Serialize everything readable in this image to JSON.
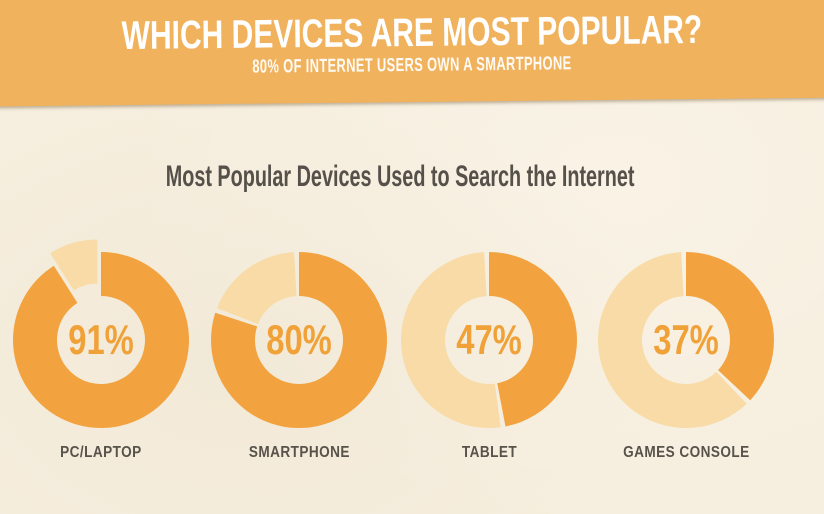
{
  "banner": {
    "title": "WHICH DEVICES ARE MOST POPULAR?",
    "subtitle": "80% OF INTERNET USERS OWN A SMARTPHONE",
    "background": "#F0B25C",
    "text_color": "#FFFFFF"
  },
  "section_title": "Most Popular Devices Used to Search the Internet",
  "chart_data": {
    "type": "pie",
    "style": "donut",
    "title": "Most Popular Devices Used to Search the Internet",
    "unit": "%",
    "categories": [
      "PC/LAPTOP",
      "SMARTPHONE",
      "TABLET",
      "GAMES CONSOLE"
    ],
    "values": [
      91,
      80,
      47,
      37
    ],
    "labels": [
      "91%",
      "80%",
      "47%",
      "37%"
    ],
    "start_angle_deg": 0,
    "direction": "clockwise",
    "exploded_remainder": [
      true,
      false,
      false,
      false
    ],
    "colors": {
      "filled": "#F2A340",
      "remainder": "#F8DBA6",
      "background": "#F6EEDE",
      "value_text": "#F0A138",
      "label_text": "#57534A"
    }
  }
}
